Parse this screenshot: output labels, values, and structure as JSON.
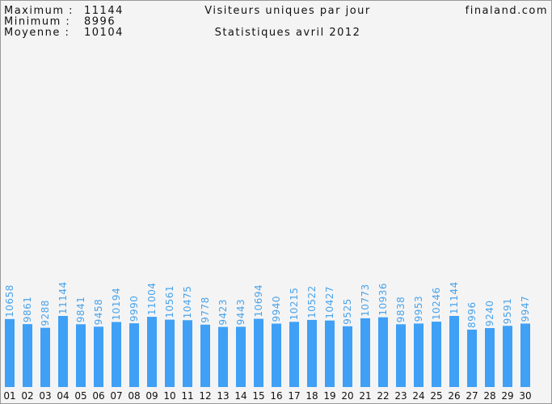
{
  "chart_data": {
    "type": "bar",
    "title": "Visiteurs uniques par jour",
    "subtitle": "Statistiques avril 2012",
    "site": "finaland.com",
    "stats": [
      {
        "label": "Maximum :",
        "value": 11144
      },
      {
        "label": "Minimum :",
        "value": 8996
      },
      {
        "label": "Moyenne :",
        "value": 10104
      }
    ],
    "categories": [
      "01",
      "02",
      "03",
      "04",
      "05",
      "06",
      "07",
      "08",
      "09",
      "10",
      "11",
      "12",
      "13",
      "14",
      "15",
      "16",
      "17",
      "18",
      "19",
      "20",
      "21",
      "22",
      "23",
      "24",
      "25",
      "26",
      "27",
      "28",
      "29",
      "30"
    ],
    "values": [
      10658,
      9861,
      9288,
      11144,
      9841,
      9458,
      10194,
      9990,
      11004,
      10561,
      10475,
      9778,
      9423,
      9443,
      10694,
      9940,
      10215,
      10522,
      10427,
      9525,
      10773,
      10936,
      9838,
      9953,
      10246,
      11144,
      8996,
      9240,
      9591,
      9947
    ],
    "color": "#3fa0f5",
    "label_color": "#4aa3ea"
  }
}
